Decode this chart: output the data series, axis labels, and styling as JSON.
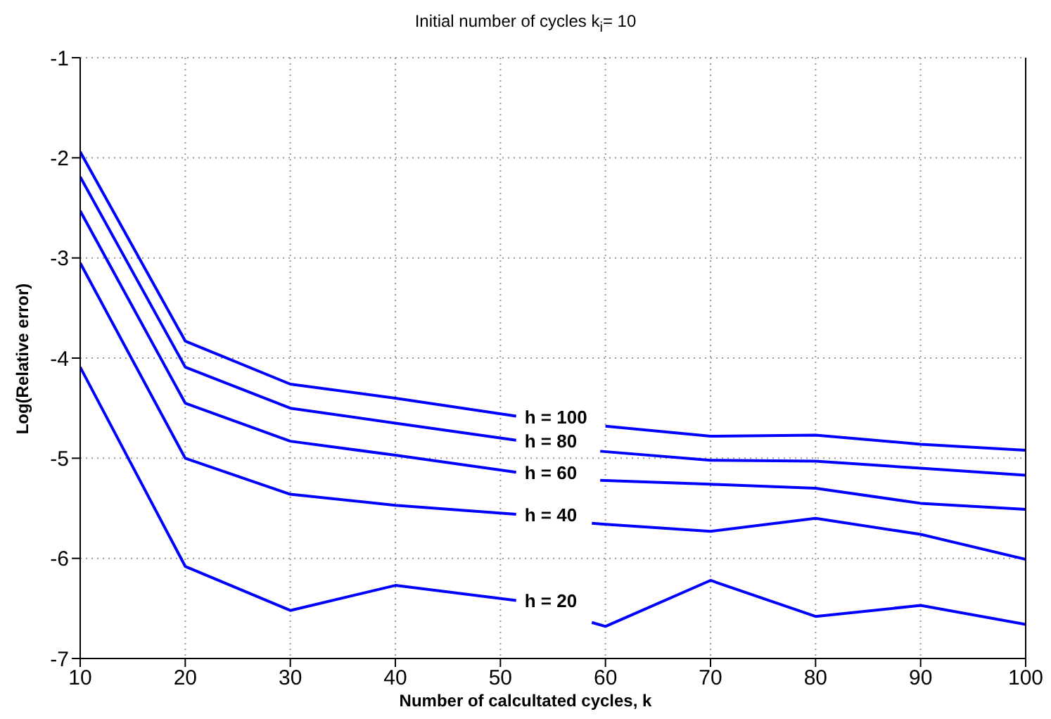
{
  "chart_data": {
    "type": "line",
    "title": "Initial number of cycles k$_{i}$= 10",
    "xlabel": "Number of calcultated cycles, k",
    "ylabel": "Log(Relative error)",
    "xlim": [
      10,
      100
    ],
    "xticks": [
      10,
      20,
      30,
      40,
      50,
      60,
      70,
      80,
      90,
      100
    ],
    "ylim": [
      -7,
      -1
    ],
    "yticks": [
      -7,
      -6,
      -5,
      -4,
      -3,
      -2,
      -1
    ],
    "grid": true,
    "marker": "none",
    "line_style": "solid",
    "series": [
      {
        "name": "h = 100",
        "color": "#0000ff",
        "x": [
          10,
          20,
          30,
          40,
          51.5,
          55,
          60,
          70,
          80,
          90,
          100
        ],
        "values": [
          -1.94,
          -3.83,
          -4.26,
          -4.4,
          -4.58,
          null,
          -4.68,
          -4.78,
          -4.77,
          -4.86,
          -4.92
        ]
      },
      {
        "name": "h = 80",
        "color": "#0000ff",
        "x": [
          10,
          20,
          30,
          40,
          51.5,
          55,
          59.5,
          70,
          80,
          90,
          100
        ],
        "values": [
          -2.19,
          -4.09,
          -4.5,
          -4.65,
          -4.82,
          null,
          -4.93,
          -5.02,
          -5.03,
          -5.1,
          -5.17
        ]
      },
      {
        "name": "h = 60",
        "color": "#0000ff",
        "x": [
          10,
          20,
          30,
          40,
          51.5,
          55,
          59.5,
          70,
          80,
          90,
          100
        ],
        "values": [
          -2.53,
          -4.45,
          -4.83,
          -4.97,
          -5.14,
          null,
          -5.22,
          -5.26,
          -5.3,
          -5.45,
          -5.51
        ]
      },
      {
        "name": "h = 40",
        "color": "#0000ff",
        "x": [
          10,
          20,
          30,
          40,
          51.5,
          55,
          58.7,
          60,
          70,
          80,
          90,
          100
        ],
        "values": [
          -3.05,
          -5.0,
          -5.36,
          -5.47,
          -5.56,
          null,
          -5.65,
          -5.66,
          -5.73,
          -5.6,
          -5.76,
          -6.01
        ]
      },
      {
        "name": "h = 20",
        "color": "#0000ff",
        "x": [
          10,
          20,
          30,
          40,
          51.5,
          55,
          58.7,
          60,
          70,
          80,
          90,
          100
        ],
        "values": [
          -4.09,
          -6.08,
          -6.52,
          -6.27,
          -6.42,
          null,
          -6.64,
          -6.68,
          -6.22,
          -6.58,
          -6.47,
          -6.66
        ]
      }
    ]
  }
}
